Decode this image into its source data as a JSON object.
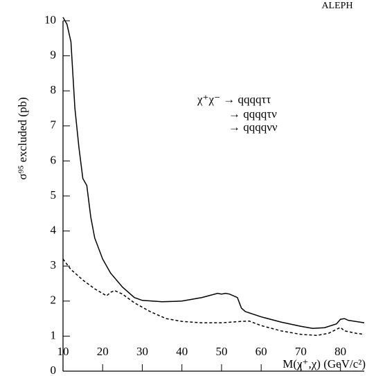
{
  "chart_data": {
    "type": "line",
    "title": "ALEPH",
    "x_label": "M(χ⁺,χ)  (GeV/c²)",
    "y_label": "σ⁹⁵ excluded (pb)",
    "annotations": [
      "χ⁺χ⁻ → qqqqττ",
      "→ qqqqτν",
      "→ qqqqνν"
    ],
    "xlim": [
      10,
      86
    ],
    "ylim": [
      0,
      10
    ],
    "xticks": [
      10,
      20,
      30,
      40,
      50,
      60,
      70,
      80
    ],
    "yticks": [
      0,
      1,
      2,
      3,
      4,
      5,
      6,
      7,
      8,
      9,
      10
    ],
    "grid": false,
    "series": [
      {
        "color": "#000000",
        "style": "solid",
        "x": [
          10,
          11,
          12,
          13,
          14,
          15,
          16,
          17,
          18,
          20,
          22,
          25,
          28,
          30,
          35,
          40,
          45,
          49,
          50,
          51,
          52,
          53,
          54,
          55,
          56,
          60,
          65,
          70,
          73,
          76,
          79,
          80,
          81,
          82,
          86
        ],
        "values": [
          10.1,
          9.9,
          9.4,
          7.5,
          6.4,
          5.5,
          5.3,
          4.4,
          3.8,
          3.2,
          2.8,
          2.4,
          2.1,
          2.02,
          1.98,
          2.0,
          2.1,
          2.22,
          2.2,
          2.22,
          2.2,
          2.15,
          2.1,
          1.8,
          1.7,
          1.55,
          1.4,
          1.28,
          1.22,
          1.24,
          1.35,
          1.48,
          1.5,
          1.45,
          1.38
        ]
      },
      {
        "color": "#000000",
        "style": "dashed",
        "x": [
          10,
          12,
          15,
          18,
          21,
          22,
          23,
          25,
          28,
          32,
          36,
          40,
          45,
          50,
          55,
          57,
          60,
          65,
          70,
          74,
          77,
          80,
          81,
          84,
          86
        ],
        "values": [
          3.2,
          2.9,
          2.6,
          2.35,
          2.15,
          2.25,
          2.3,
          2.2,
          1.95,
          1.7,
          1.5,
          1.42,
          1.38,
          1.38,
          1.42,
          1.43,
          1.3,
          1.15,
          1.05,
          1.02,
          1.08,
          1.25,
          1.15,
          1.08,
          1.05
        ]
      }
    ]
  }
}
